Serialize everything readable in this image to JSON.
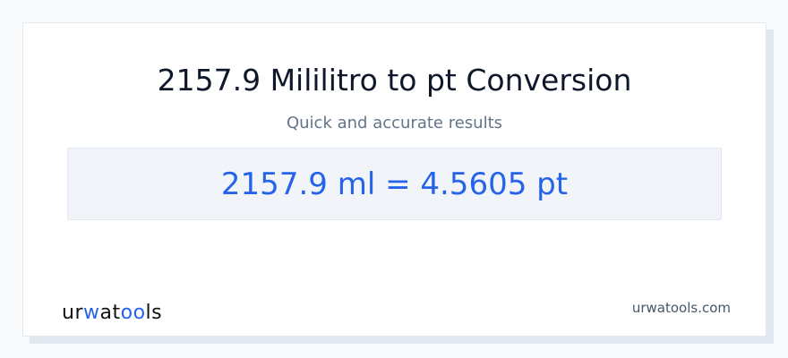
{
  "title": "2157.9 Mililitro to pt Conversion",
  "subtitle": "Quick and accurate results",
  "result": "2157.9 ml = 4.5605 pt",
  "logo": {
    "text": "urwatools",
    "parts": [
      "ur",
      "w",
      "at",
      "oo",
      "ls"
    ]
  },
  "site": "urwatools.com",
  "colors": {
    "accent": "#2563eb",
    "background": "#f8fafc"
  }
}
